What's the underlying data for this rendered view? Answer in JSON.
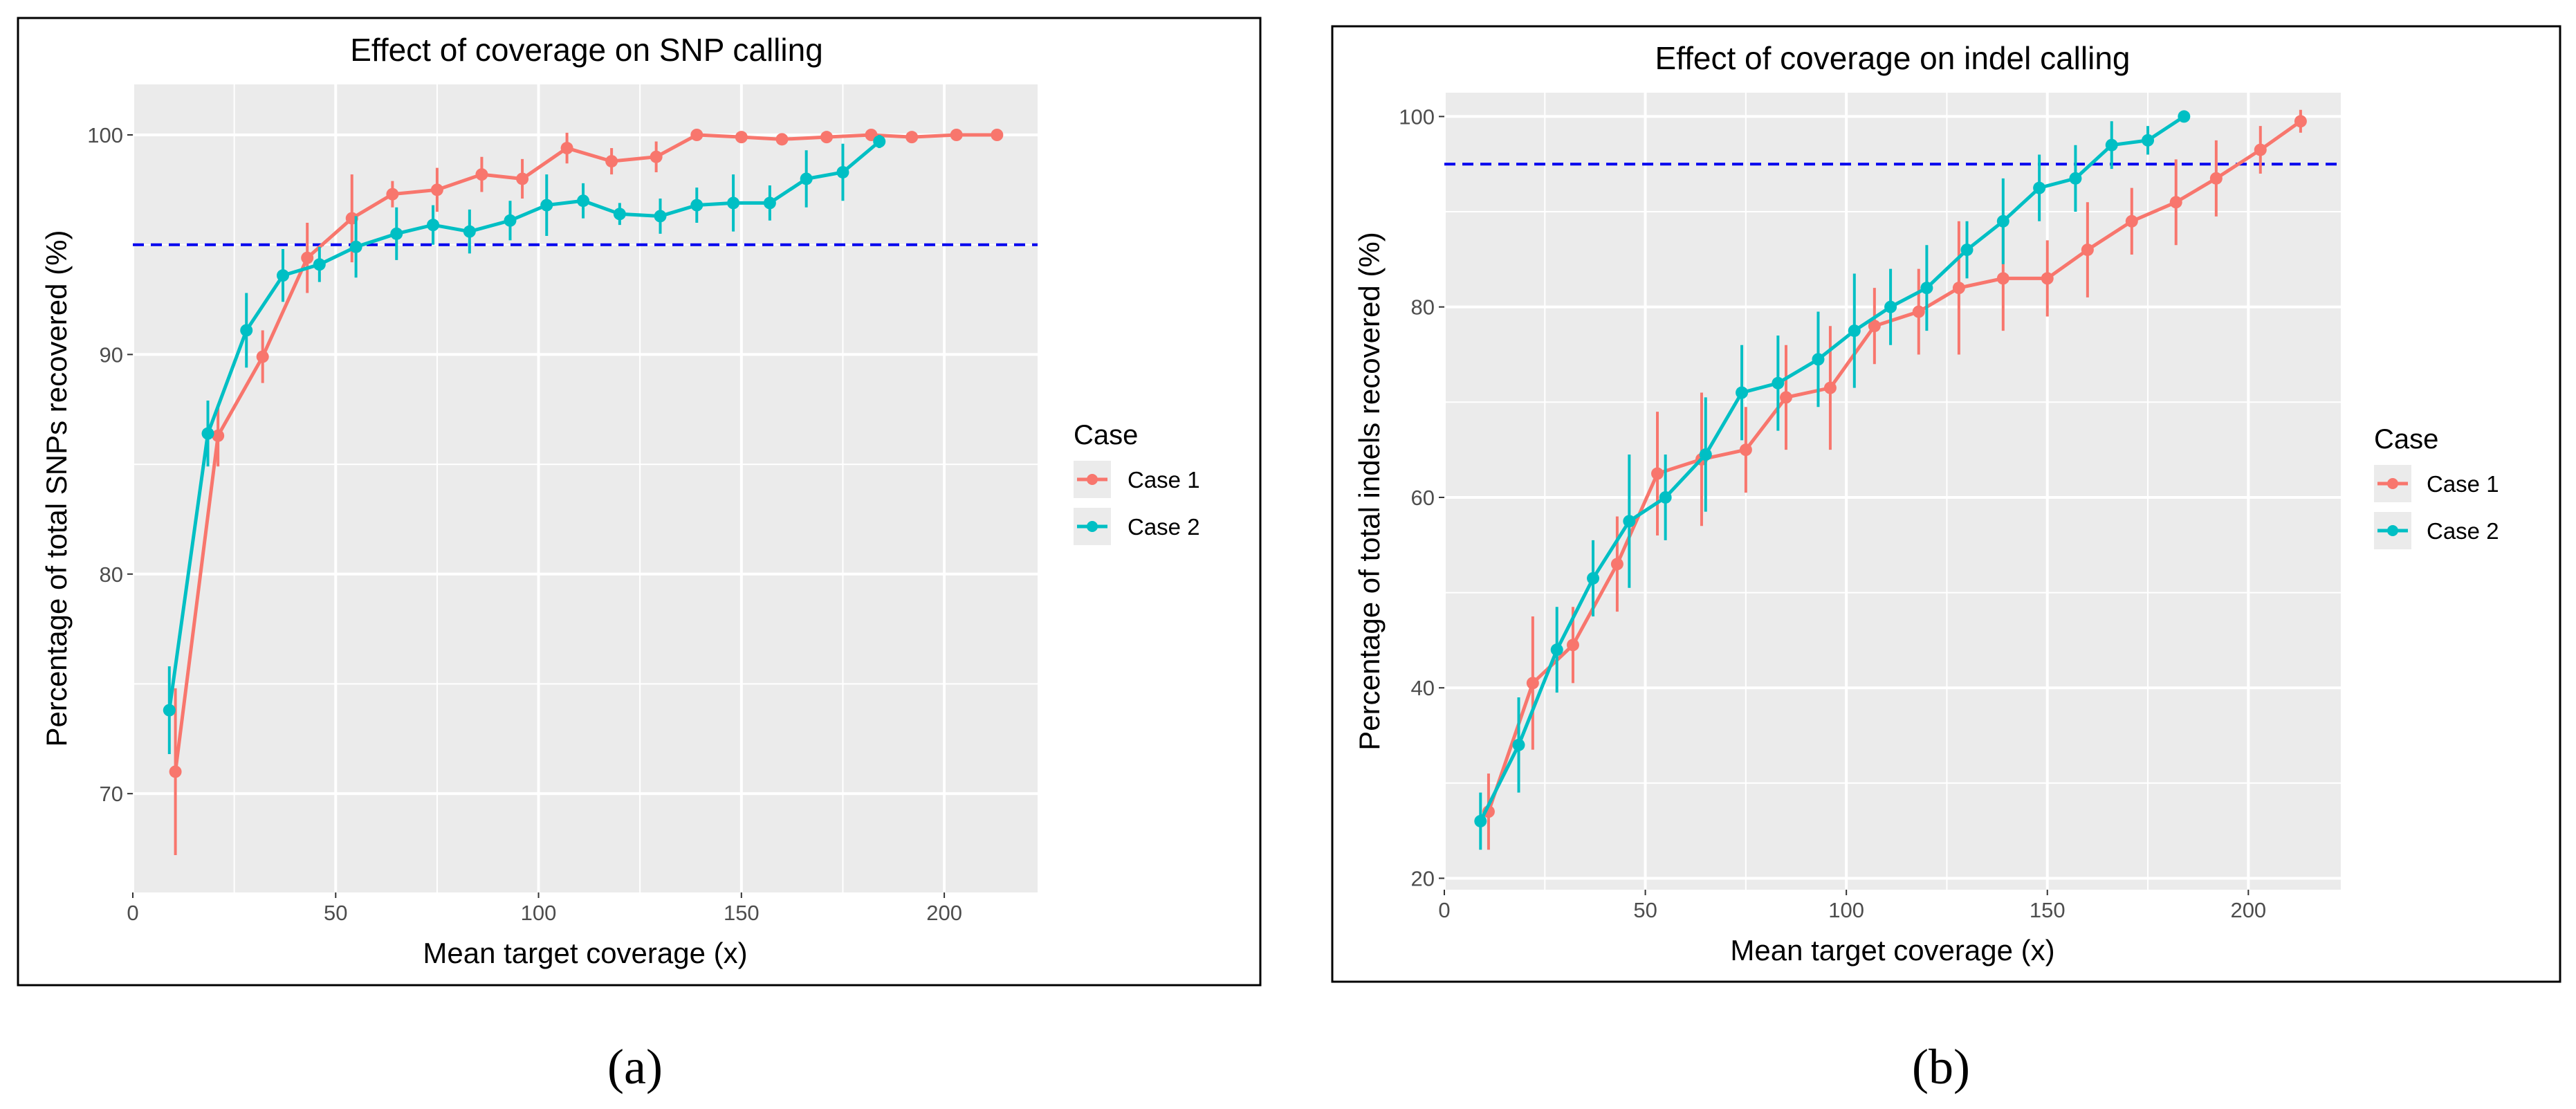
{
  "figure": {
    "panel_a_label": "(a)",
    "panel_b_label": "(b)",
    "grid_color": "#ffffff",
    "panel_background": "#ebebeb",
    "reference_line_color": "#0000ee"
  },
  "chart_data": [
    {
      "type": "line",
      "title": "Effect of coverage on SNP calling",
      "xlabel": "Mean target coverage (x)",
      "ylabel": "Percentage of total SNPs recovered (%)",
      "xlim": [
        0,
        223
      ],
      "ylim": [
        65.5,
        102.3
      ],
      "xticks": [
        0,
        50,
        100,
        150,
        200
      ],
      "yticks": [
        70,
        80,
        90,
        100
      ],
      "hline": 95,
      "legend_title": "Case",
      "series": [
        {
          "name": "Case 1",
          "color": "#f8766d",
          "x": [
            10.5,
            21,
            32,
            43,
            54,
            64,
            75,
            86,
            96,
            107,
            118,
            129,
            139,
            150,
            160,
            171,
            182,
            192,
            203,
            213
          ],
          "y": [
            71.0,
            86.3,
            89.9,
            94.4,
            96.2,
            97.3,
            97.5,
            98.2,
            98.0,
            99.4,
            98.8,
            99.0,
            100.0,
            99.9,
            99.8,
            99.9,
            100.0,
            99.9,
            100.0,
            100.0
          ],
          "err": [
            3.8,
            1.4,
            1.2,
            1.6,
            2.0,
            0.6,
            1.0,
            0.8,
            0.9,
            0.7,
            0.6,
            0.7,
            0.2,
            0.2,
            0.2,
            0.2,
            0.2,
            0.2,
            0.2,
            0.2
          ]
        },
        {
          "name": "Case 2",
          "color": "#00bfc4",
          "x": [
            9,
            18.5,
            28,
            37,
            46,
            55,
            65,
            74,
            83,
            93,
            102,
            111,
            120,
            130,
            139,
            148,
            157,
            166,
            175,
            184
          ],
          "y": [
            73.8,
            86.4,
            91.1,
            93.6,
            94.1,
            94.9,
            95.5,
            95.9,
            95.6,
            96.1,
            96.8,
            97.0,
            96.4,
            96.3,
            96.8,
            96.9,
            96.9,
            98.0,
            98.3,
            99.7
          ],
          "err": [
            2.0,
            1.5,
            1.7,
            1.2,
            0.8,
            1.4,
            1.2,
            0.9,
            1.0,
            0.9,
            1.4,
            0.8,
            0.5,
            0.8,
            0.8,
            1.3,
            0.8,
            1.3,
            1.3,
            0.3
          ]
        }
      ]
    },
    {
      "type": "line",
      "title": "Effect of coverage on indel calling",
      "xlabel": "Mean target coverage (x)",
      "ylabel": "Percentage of total indels recovered (%)",
      "xlim": [
        0,
        223
      ],
      "ylim": [
        18.8,
        102.5
      ],
      "xticks": [
        0,
        50,
        100,
        150,
        200
      ],
      "yticks": [
        20,
        40,
        60,
        80,
        100
      ],
      "hline": 95,
      "legend_title": "Case",
      "series": [
        {
          "name": "Case 1",
          "color": "#f8766d",
          "x": [
            11,
            22,
            32,
            43,
            53,
            64,
            75,
            85,
            96,
            107,
            118,
            128,
            139,
            150,
            160,
            171,
            182,
            192,
            203,
            213
          ],
          "y": [
            27.0,
            40.5,
            44.5,
            53.0,
            62.5,
            64.0,
            65.0,
            70.5,
            71.5,
            78.0,
            79.5,
            82.0,
            83.0,
            83.0,
            86.0,
            89.0,
            91.0,
            93.5,
            96.5,
            99.5
          ],
          "err": [
            4.0,
            7.0,
            4.0,
            5.0,
            6.5,
            7.0,
            4.5,
            5.5,
            6.5,
            4.0,
            4.5,
            7.0,
            5.5,
            4.0,
            5.0,
            3.5,
            4.5,
            4.0,
            2.5,
            1.2
          ]
        },
        {
          "name": "Case 2",
          "color": "#00bfc4",
          "x": [
            9,
            18.5,
            28,
            37,
            46,
            55,
            65,
            74,
            83,
            93,
            102,
            111,
            120,
            130,
            139,
            148,
            157,
            166,
            175,
            184
          ],
          "y": [
            26.0,
            34.0,
            44.0,
            51.5,
            57.5,
            60.0,
            64.5,
            71.0,
            72.0,
            74.5,
            77.5,
            80.0,
            82.0,
            86.0,
            89.0,
            92.5,
            93.5,
            97.0,
            97.5,
            100.0
          ],
          "err": [
            3.0,
            5.0,
            4.5,
            4.0,
            7.0,
            4.5,
            6.0,
            5.0,
            5.0,
            5.0,
            6.0,
            4.0,
            4.5,
            3.0,
            4.5,
            3.5,
            3.5,
            2.5,
            1.5,
            0.5
          ]
        }
      ]
    }
  ]
}
